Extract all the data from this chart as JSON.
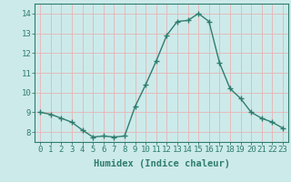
{
  "x": [
    0,
    1,
    2,
    3,
    4,
    5,
    6,
    7,
    8,
    9,
    10,
    11,
    12,
    13,
    14,
    15,
    16,
    17,
    18,
    19,
    20,
    21,
    22,
    23
  ],
  "y": [
    9.0,
    8.9,
    8.7,
    8.5,
    8.1,
    7.75,
    7.8,
    7.75,
    7.8,
    9.3,
    10.4,
    11.6,
    12.9,
    13.6,
    13.65,
    14.0,
    13.6,
    11.5,
    10.2,
    9.7,
    9.0,
    8.7,
    8.5,
    8.2
  ],
  "line_color": "#2e7d6e",
  "marker": "+",
  "marker_size": 4,
  "bg_color": "#cdeaea",
  "grid_color": "#e8b4b4",
  "axis_color": "#2e7d6e",
  "xlabel": "Humidex (Indice chaleur)",
  "xlabel_fontsize": 7.5,
  "ylim": [
    7.5,
    14.5
  ],
  "xlim": [
    -0.5,
    23.5
  ],
  "yticks": [
    8,
    9,
    10,
    11,
    12,
    13,
    14
  ],
  "xticks": [
    0,
    1,
    2,
    3,
    4,
    5,
    6,
    7,
    8,
    9,
    10,
    11,
    12,
    13,
    14,
    15,
    16,
    17,
    18,
    19,
    20,
    21,
    22,
    23
  ],
  "tick_fontsize": 6.5
}
